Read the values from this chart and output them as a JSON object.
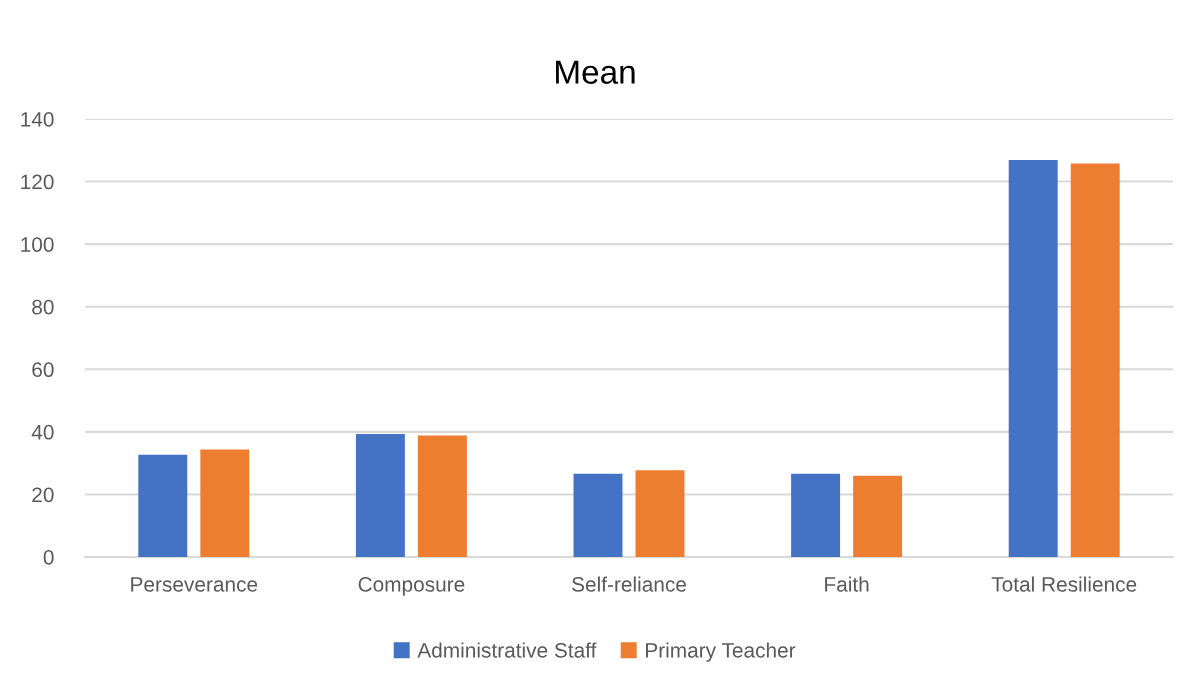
{
  "chart_data": {
    "type": "bar",
    "title": "Mean",
    "categories": [
      "Perseverance",
      "Composure",
      "Self-reliance",
      "Faith",
      "Total Resilience"
    ],
    "series": [
      {
        "name": "Administrative Staff",
        "color": "#4472c4",
        "values": [
          32.7,
          39.3,
          26.6,
          26.6,
          126.9
        ]
      },
      {
        "name": "Primary Teacher",
        "color": "#ed7d31",
        "values": [
          34.4,
          38.8,
          27.7,
          26.0,
          125.8
        ]
      }
    ],
    "ylim": [
      0,
      140
    ],
    "yticks": [
      0,
      20,
      40,
      60,
      80,
      100,
      120,
      140
    ],
    "grid": "y",
    "legend": "bottom"
  }
}
